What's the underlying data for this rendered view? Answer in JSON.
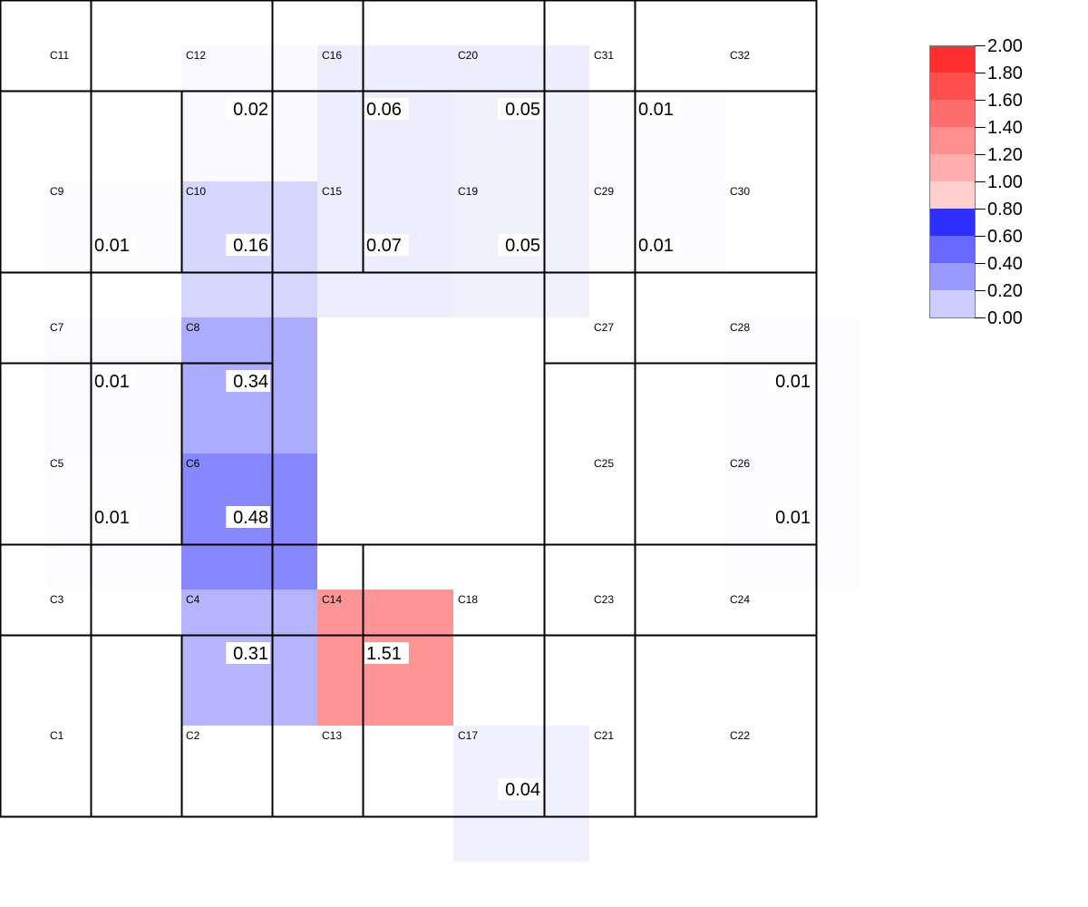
{
  "chart_data": {
    "type": "heatmap",
    "colorbar": {
      "ticks": [
        "2.00",
        "1.80",
        "1.60",
        "1.40",
        "1.20",
        "1.00",
        "0.80",
        "0.60",
        "0.40",
        "0.20",
        "0.00"
      ],
      "bands": [
        "#ff2e2e",
        "#ff4e4e",
        "#ff6e6e",
        "#ff8e8e",
        "#ffaeae",
        "#ffcfcf",
        "#2e2eff",
        "#6868ff",
        "#9a9aff",
        "#cdcdff",
        "#ffffff"
      ],
      "range": [
        0,
        2
      ]
    },
    "cells": [
      {
        "id": "C1",
        "value": null
      },
      {
        "id": "C2",
        "value": null
      },
      {
        "id": "C3",
        "value": null
      },
      {
        "id": "C4",
        "value": 0.31
      },
      {
        "id": "C5",
        "value": 0.01
      },
      {
        "id": "C6",
        "value": 0.48
      },
      {
        "id": "C7",
        "value": 0.01
      },
      {
        "id": "C8",
        "value": 0.34
      },
      {
        "id": "C9",
        "value": 0.01
      },
      {
        "id": "C10",
        "value": 0.16
      },
      {
        "id": "C11",
        "value": null
      },
      {
        "id": "C12",
        "value": 0.02
      },
      {
        "id": "C13",
        "value": null
      },
      {
        "id": "C14",
        "value": 1.51
      },
      {
        "id": "C15",
        "value": 0.07
      },
      {
        "id": "C16",
        "value": 0.06
      },
      {
        "id": "C17",
        "value": 0.04
      },
      {
        "id": "C18",
        "value": null
      },
      {
        "id": "C19",
        "value": 0.05
      },
      {
        "id": "C20",
        "value": 0.05
      },
      {
        "id": "C21",
        "value": null
      },
      {
        "id": "C22",
        "value": null
      },
      {
        "id": "C23",
        "value": null
      },
      {
        "id": "C24",
        "value": null
      },
      {
        "id": "C25",
        "value": 0.01
      },
      {
        "id": "C26",
        "value": 0.01
      },
      {
        "id": "C27",
        "value": null
      },
      {
        "id": "C28",
        "value": null
      },
      {
        "id": "C29",
        "value": 0.01
      },
      {
        "id": "C30",
        "value": 0.01
      },
      {
        "id": "C31",
        "value": null
      },
      {
        "id": "C32",
        "value": null
      }
    ],
    "heat_colors": {
      "C4": "#b4b4ff",
      "C5": "#fdfdff",
      "C6": "#8787ff",
      "C7": "#fafaff",
      "C8": "#ababff",
      "C9": "#fcfcff",
      "C10": "#d6d6ff",
      "C12": "#f9f9ff",
      "C14": "#ff9494",
      "C15": "#ededfd",
      "C16": "#ededfd",
      "C17": "#f0f0fe",
      "C19": "#f1f1fd",
      "C20": "#f1f1fd",
      "C25": "#fdfdff",
      "C26": "#fdfdff",
      "C29": "#fcfcff",
      "C30": "#fcfcff"
    }
  }
}
